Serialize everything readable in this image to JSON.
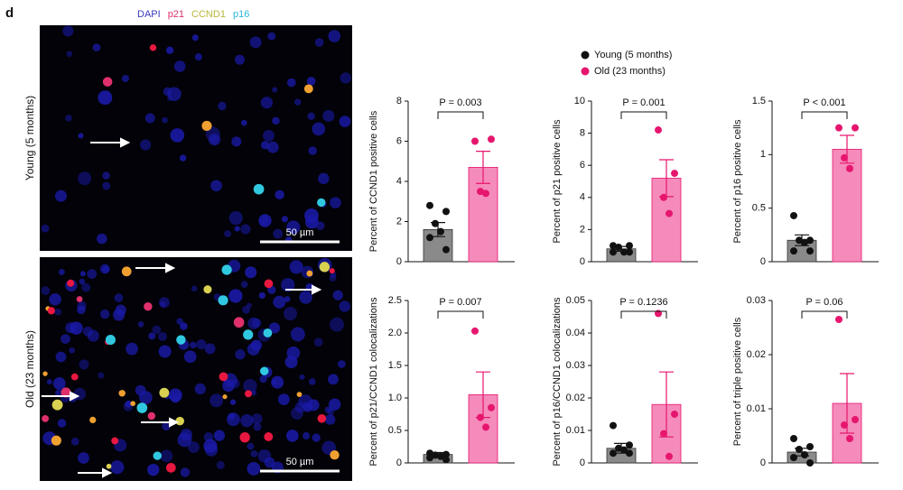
{
  "figure": {
    "panel_label": "d",
    "stains": [
      {
        "name": "DAPI",
        "color": "#3b3bc0"
      },
      {
        "name": "p21",
        "color": "#e0306c"
      },
      {
        "name": "CCND1",
        "color": "#b8b83a"
      },
      {
        "name": "p16",
        "color": "#2ab8d8"
      }
    ],
    "row_labels": [
      "Young (5 months)",
      "Old (23 months)"
    ],
    "scale_bar": "50 µm"
  },
  "chart_data": [
    {
      "type": "bar",
      "ylabel": "Percent of CCND1 positive cells",
      "annotation": "P = 0.003",
      "ylim": [
        0,
        8
      ],
      "yticks": [
        0,
        2,
        4,
        6,
        8
      ],
      "series": [
        {
          "name": "Young (5 months)",
          "color": "#8a8a8a",
          "point_color": "#111111",
          "mean": 1.6,
          "sem": 0.35,
          "points": [
            2.8,
            2.5,
            1.9,
            1.5,
            1.2,
            0.6
          ]
        },
        {
          "name": "Old (23 months)",
          "color": "#f58bbb",
          "point_color": "#e6166e",
          "mean": 4.7,
          "sem": 0.8,
          "points": [
            6.0,
            6.1,
            3.5,
            3.4
          ]
        }
      ]
    },
    {
      "type": "bar",
      "ylabel": "Percent of p21 positive cells",
      "annotation": "P = 0.001",
      "ylim": [
        0,
        10
      ],
      "yticks": [
        0,
        2,
        4,
        6,
        8,
        10
      ],
      "series": [
        {
          "name": "Young (5 months)",
          "color": "#8a8a8a",
          "point_color": "#111111",
          "mean": 0.8,
          "sem": 0.15,
          "points": [
            1.0,
            1.0,
            0.9,
            0.6,
            0.6,
            0.6
          ]
        },
        {
          "name": "Old (23 months)",
          "color": "#f58bbb",
          "point_color": "#e6166e",
          "mean": 5.2,
          "sem": 1.15,
          "points": [
            8.2,
            5.5,
            4.0,
            3.0
          ]
        }
      ]
    },
    {
      "type": "bar",
      "ylabel": "Percent of p16 positive cells",
      "annotation": "P < 0.001",
      "ylim": [
        0,
        1.5
      ],
      "yticks": [
        0,
        0.5,
        1,
        1.5
      ],
      "series": [
        {
          "name": "Young (5 months)",
          "color": "#8a8a8a",
          "point_color": "#111111",
          "mean": 0.2,
          "sem": 0.05,
          "points": [
            0.43,
            0.2,
            0.2,
            0.18,
            0.1,
            0.1
          ]
        },
        {
          "name": "Old (23 months)",
          "color": "#f58bbb",
          "point_color": "#e6166e",
          "mean": 1.05,
          "sem": 0.13,
          "points": [
            1.25,
            1.25,
            0.97,
            0.87
          ]
        }
      ]
    },
    {
      "type": "bar",
      "ylabel": "Percent of p21/CCND1 colocalizations",
      "annotation": "P = 0.007",
      "ylim": [
        0,
        2.5
      ],
      "yticks": [
        0,
        0.5,
        {
          "value": 1,
          "label": "1.0"
        },
        1.5,
        {
          "value": 2,
          "label": "2.0"
        },
        2.5
      ],
      "series": [
        {
          "name": "Young (5 months)",
          "color": "#8a8a8a",
          "point_color": "#111111",
          "mean": 0.13,
          "sem": 0.03,
          "points": [
            0.15,
            0.13,
            0.12,
            0.1,
            0.08,
            0.05
          ]
        },
        {
          "name": "Old (23 months)",
          "color": "#f58bbb",
          "point_color": "#e6166e",
          "mean": 1.05,
          "sem": 0.35,
          "points": [
            2.03,
            0.85,
            0.7,
            0.55
          ]
        }
      ]
    },
    {
      "type": "bar",
      "ylabel": "Percent of p16/CCND1 colocalizations",
      "annotation": "P = 0.1236",
      "ylim": [
        0,
        0.05
      ],
      "yticks": [
        0,
        0.01,
        0.02,
        0.03,
        0.04,
        0.05
      ],
      "series": [
        {
          "name": "Young (5 months)",
          "color": "#8a8a8a",
          "point_color": "#111111",
          "mean": 0.0045,
          "sem": 0.0015,
          "points": [
            0.0115,
            0.0055,
            0.0045,
            0.004,
            0.003,
            0.003
          ]
        },
        {
          "name": "Old (23 months)",
          "color": "#f58bbb",
          "point_color": "#e6166e",
          "mean": 0.018,
          "sem": 0.01,
          "points": [
            0.046,
            0.015,
            0.009,
            0.002
          ]
        }
      ]
    },
    {
      "type": "bar",
      "ylabel": "Percent of triple positive cells",
      "annotation": "P = 0.06",
      "ylim": [
        0,
        0.03
      ],
      "yticks": [
        0,
        0.01,
        0.02,
        0.03
      ],
      "series": [
        {
          "name": "Young (5 months)",
          "color": "#8a8a8a",
          "point_color": "#111111",
          "mean": 0.002,
          "sem": 0.0007,
          "points": [
            0.0045,
            0.003,
            0.0025,
            0.0015,
            0.001,
            0
          ]
        },
        {
          "name": "Old (23 months)",
          "color": "#f58bbb",
          "point_color": "#e6166e",
          "mean": 0.011,
          "sem": 0.0055,
          "points": [
            0.0265,
            0.008,
            0.007,
            0.0045
          ]
        }
      ]
    }
  ]
}
